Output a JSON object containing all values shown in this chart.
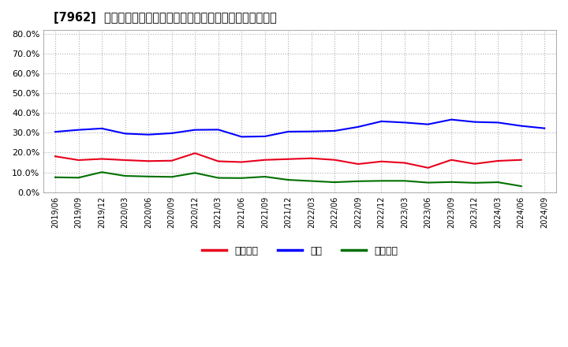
{
  "title": "[7962]  売上債権、在庫、買入債務の総資産に対する比率の推移",
  "x_labels": [
    "2019/06",
    "2019/09",
    "2019/12",
    "2020/03",
    "2020/06",
    "2020/09",
    "2020/12",
    "2021/03",
    "2021/06",
    "2021/09",
    "2021/12",
    "2022/03",
    "2022/06",
    "2022/09",
    "2022/12",
    "2023/03",
    "2023/06",
    "2023/09",
    "2023/12",
    "2024/03",
    "2024/06",
    "2024/09"
  ],
  "series": {
    "売上債権": [
      0.181,
      0.162,
      0.168,
      0.162,
      0.157,
      0.159,
      0.197,
      0.156,
      0.152,
      0.163,
      0.167,
      0.171,
      0.163,
      0.142,
      0.155,
      0.148,
      0.123,
      0.163,
      0.143,
      0.158,
      0.163,
      null
    ],
    "在庫": [
      0.305,
      0.315,
      0.322,
      0.296,
      0.291,
      0.298,
      0.315,
      0.316,
      0.28,
      0.282,
      0.306,
      0.307,
      0.31,
      0.33,
      0.358,
      0.352,
      0.343,
      0.367,
      0.355,
      0.352,
      0.335,
      0.323
    ],
    "買入債務": [
      0.075,
      0.073,
      0.101,
      0.082,
      0.079,
      0.077,
      0.097,
      0.072,
      0.071,
      0.078,
      0.062,
      0.056,
      0.05,
      0.055,
      0.057,
      0.057,
      0.048,
      0.051,
      0.047,
      0.05,
      0.03,
      null
    ]
  },
  "colors": {
    "売上債権": "#e8001c",
    "在庫": "#0000ff",
    "買入債務": "#007000"
  },
  "ylim": [
    0.0,
    0.82
  ],
  "yticks": [
    0.0,
    0.1,
    0.2,
    0.3,
    0.4,
    0.5,
    0.6,
    0.7,
    0.8
  ],
  "background_color": "#ffffff",
  "grid_color": "#b0b0b0",
  "legend_labels": [
    "売上債権",
    "在庫",
    "買入債務"
  ]
}
